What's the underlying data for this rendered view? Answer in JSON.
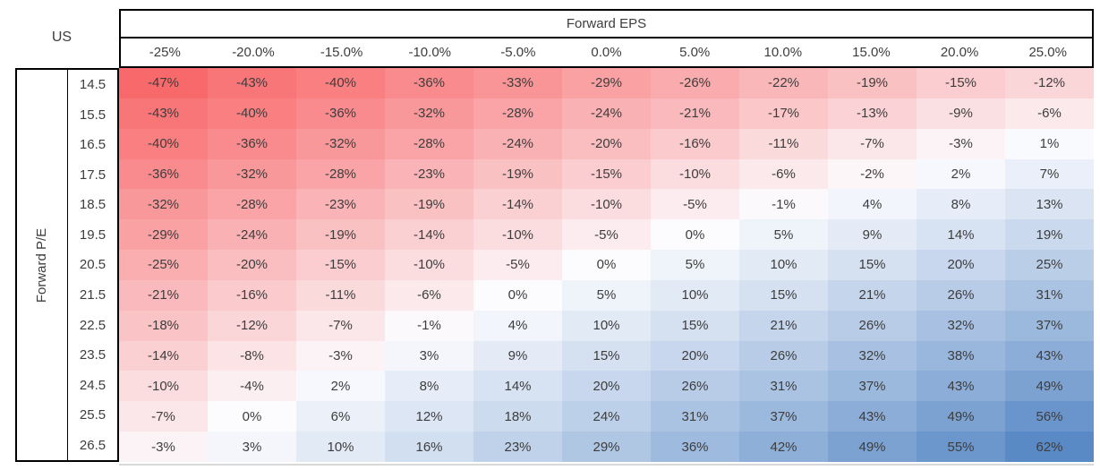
{
  "us_label": "US",
  "header": {
    "group_label": "Forward EPS"
  },
  "row_axis_label": "Forward P/E",
  "chart_data": {
    "type": "heatmap",
    "title": "US",
    "col_axis_label": "Forward EPS",
    "row_axis_label": "Forward P/E",
    "columns": [
      "-25%",
      "-20.0%",
      "-15.0%",
      "-10.0%",
      "-5.0%",
      "0.0%",
      "5.0%",
      "10.0%",
      "15.0%",
      "20.0%",
      "25.0%"
    ],
    "rows": [
      "14.5",
      "15.5",
      "16.5",
      "17.5",
      "18.5",
      "19.5",
      "20.5",
      "21.5",
      "22.5",
      "23.5",
      "24.5",
      "25.5",
      "26.5"
    ],
    "values_pct": [
      [
        -47,
        -43,
        -40,
        -36,
        -33,
        -29,
        -26,
        -22,
        -19,
        -15,
        -12
      ],
      [
        -43,
        -40,
        -36,
        -32,
        -28,
        -24,
        -21,
        -17,
        -13,
        -9,
        -6
      ],
      [
        -40,
        -36,
        -32,
        -28,
        -24,
        -20,
        -16,
        -11,
        -7,
        -3,
        1
      ],
      [
        -36,
        -32,
        -28,
        -23,
        -19,
        -15,
        -10,
        -6,
        -2,
        2,
        7
      ],
      [
        -32,
        -28,
        -23,
        -19,
        -14,
        -10,
        -5,
        -1,
        4,
        8,
        13
      ],
      [
        -29,
        -24,
        -19,
        -14,
        -10,
        -5,
        0,
        5,
        9,
        14,
        19
      ],
      [
        -25,
        -20,
        -15,
        -10,
        -5,
        0,
        5,
        10,
        15,
        20,
        25
      ],
      [
        -21,
        -16,
        -11,
        -6,
        0,
        5,
        10,
        15,
        21,
        26,
        31
      ],
      [
        -18,
        -12,
        -7,
        -1,
        4,
        10,
        15,
        21,
        26,
        32,
        37
      ],
      [
        -14,
        -8,
        -3,
        3,
        9,
        15,
        20,
        26,
        32,
        38,
        43
      ],
      [
        -10,
        -4,
        2,
        8,
        14,
        20,
        26,
        31,
        37,
        43,
        49
      ],
      [
        -7,
        0,
        6,
        12,
        18,
        24,
        31,
        37,
        43,
        49,
        56
      ],
      [
        -3,
        3,
        10,
        16,
        23,
        29,
        36,
        42,
        49,
        55,
        62
      ]
    ],
    "value_suffix": "%",
    "color_scale": {
      "min_value": -47,
      "mid_value": 0,
      "max_value": 62,
      "min_color": "#F8696B",
      "mid_color": "#FCFCFF",
      "max_color": "#5A8AC6"
    },
    "layout": {
      "gridlines": false,
      "legend": false
    }
  },
  "colors": {
    "border": "#000000",
    "text": "#3d3d3d",
    "background": "#ffffff"
  }
}
